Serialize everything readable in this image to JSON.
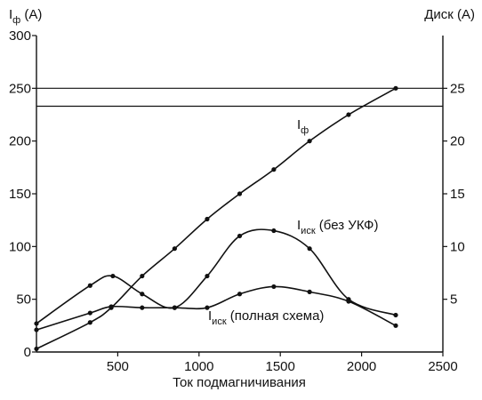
{
  "chart_data": {
    "type": "line",
    "xlabel": "Ток подмагничивания",
    "left_axis_title": {
      "main": "I",
      "sub": "ф",
      "rest": " (A)"
    },
    "right_axis_title": "Диск (A)",
    "xlim": [
      0,
      2500
    ],
    "ylim_left": [
      0,
      300
    ],
    "ylim_right": [
      0,
      30
    ],
    "x_ticks": [
      500,
      1000,
      1500,
      2000,
      2500
    ],
    "y_ticks_left": [
      0,
      50,
      100,
      150,
      200,
      250,
      300
    ],
    "y_ticks_right": [
      5,
      10,
      15,
      20,
      25
    ],
    "grid": "horizontal lines at 250 (left axis) and 23.3 (right axis)",
    "reference_lines_left": [
      250,
      233
    ],
    "series": [
      {
        "label": {
          "main": "I",
          "sub": "ф",
          "rest": ""
        },
        "axis": "left",
        "x": [
          0,
          330,
          460,
          650,
          850,
          1050,
          1250,
          1460,
          1680,
          1920,
          2210
        ],
        "y": [
          3,
          28,
          42,
          72,
          98,
          126,
          150,
          173,
          200,
          225,
          250
        ]
      },
      {
        "label": {
          "main": "I",
          "sub": "иск",
          "rest": " (без УКФ)"
        },
        "axis": "left",
        "x": [
          0,
          330,
          470,
          650,
          850,
          1050,
          1250,
          1460,
          1680,
          1920,
          2210
        ],
        "y": [
          27,
          63,
          72,
          55,
          42,
          72,
          110,
          115,
          98,
          50,
          35
        ]
      },
      {
        "label": {
          "main": "I",
          "sub": "иск",
          "rest": " (полная схема)"
        },
        "axis": "left",
        "x": [
          0,
          330,
          460,
          650,
          850,
          1050,
          1250,
          1460,
          1680,
          1920,
          2210
        ],
        "y": [
          21,
          37,
          43,
          42,
          42,
          42,
          55,
          62,
          57,
          48,
          25
        ]
      }
    ]
  }
}
